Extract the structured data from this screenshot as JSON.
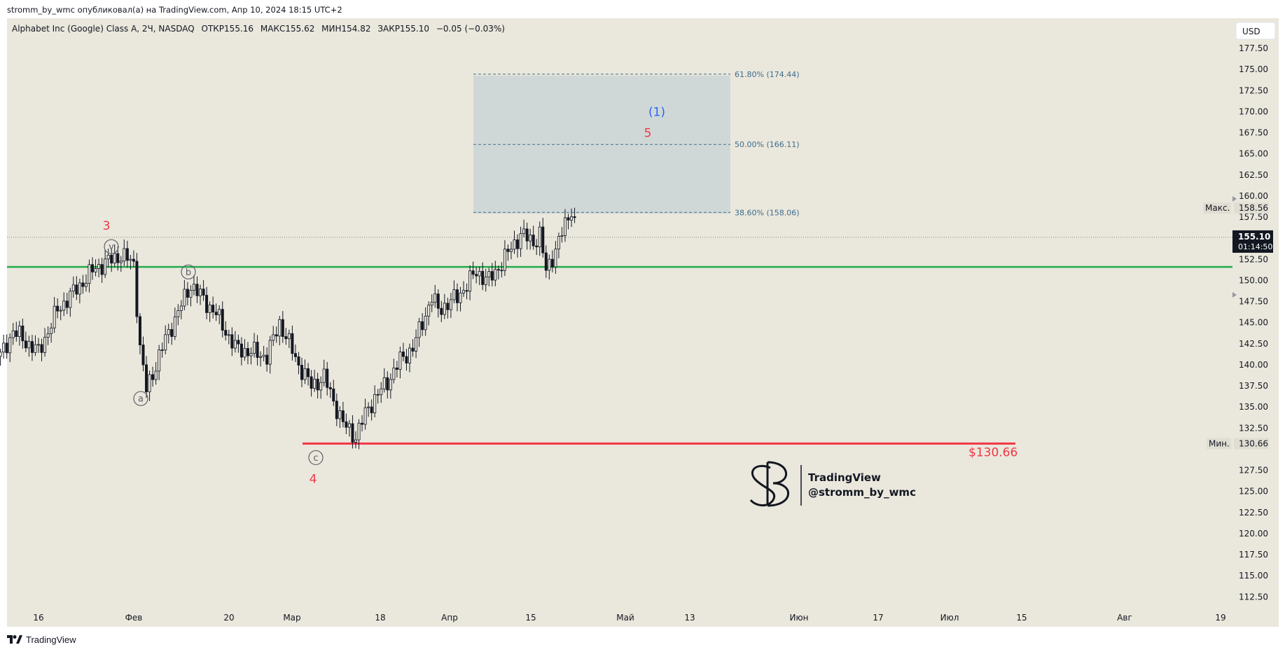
{
  "header": {
    "publish_line": "stromm_by_wmc опубликовал(а) на TradingView.com, Апр 10, 2024 18:15 UTC+2"
  },
  "legend": {
    "symbol": "Alphabet Inc (Google) Class A, 2Ч, NASDAQ",
    "open_label": "ОТКР",
    "open": "155.16",
    "high_label": "МАКС",
    "high": "155.62",
    "low_label": "МИН",
    "low": "154.82",
    "close_label": "ЗАКР",
    "close": "155.10",
    "change": "−0.05 (−0.03%)"
  },
  "currency_button": "USD",
  "price_axis": {
    "ticks": [
      "177.50",
      "175.00",
      "172.50",
      "170.00",
      "167.50",
      "165.00",
      "162.50",
      "160.00",
      "157.50",
      "152.50",
      "150.00",
      "147.50",
      "145.00",
      "142.50",
      "140.00",
      "137.50",
      "135.00",
      "132.50",
      "127.50",
      "125.00",
      "122.50",
      "120.00",
      "117.50",
      "115.00",
      "112.50"
    ],
    "max_label": "Макс.",
    "max_value": "158.56",
    "min_label": "Мин.",
    "min_value": "130.66",
    "last_price": "155.10",
    "countdown": "01:14:50"
  },
  "time_axis": {
    "ticks": [
      "16",
      "Фев",
      "20",
      "Мар",
      "18",
      "Апр",
      "15",
      "Май",
      "13",
      "Июн",
      "17",
      "Июл",
      "15",
      "Авг",
      "19"
    ]
  },
  "annotations": {
    "wave_3": "3",
    "wave_v": "v",
    "wave_a": "a",
    "wave_b": "b",
    "wave_c": "c",
    "wave_4": "4",
    "wave_5": "5",
    "wave_1": "(1)",
    "fib_618": "61.80% (174.44)",
    "fib_50": "50.00% (166.11)",
    "fib_386": "38.60% (158.06)",
    "support_price_label": "$130.66"
  },
  "watermark": {
    "brand": "TradingView",
    "handle": "@stromm_by_wmc"
  },
  "footer": {
    "logo_text": "TradingView"
  },
  "colors": {
    "background": "#eae7dc",
    "green_line": "#22ab4a",
    "red_line": "#f23645",
    "wave_red": "#f23645",
    "wave_blue": "#2962ff",
    "fib_zone": "#c9d5d6",
    "fib_text": "#3f6e8c"
  },
  "chart_data": {
    "type": "candlestick",
    "symbol": "GOOGL",
    "interval": "2H",
    "ylim": [
      111.5,
      179.5
    ],
    "swing_path": [
      {
        "x": "Jan 10",
        "y": 141.0
      },
      {
        "x": "Jan 12",
        "y": 144.0
      },
      {
        "x": "Jan 16",
        "y": 141.5
      },
      {
        "x": "Jan 19",
        "y": 146.5
      },
      {
        "x": "Jan 25",
        "y": 151.5
      },
      {
        "x": "Jan 29",
        "y": 153.0
      },
      {
        "x": "Jan 31",
        "y": 152.0
      },
      {
        "x": "Feb 1",
        "y": 142.0
      },
      {
        "x": "Feb 2",
        "y": 137.0
      },
      {
        "x": "Feb 5",
        "y": 143.0
      },
      {
        "x": "Feb 9",
        "y": 149.5
      },
      {
        "x": "Feb 13",
        "y": 146.0
      },
      {
        "x": "Feb 16",
        "y": 142.0
      },
      {
        "x": "Feb 21",
        "y": 141.0
      },
      {
        "x": "Feb 23",
        "y": 145.0
      },
      {
        "x": "Feb 26",
        "y": 140.0
      },
      {
        "x": "Feb 28",
        "y": 137.5
      },
      {
        "x": "Mar 1",
        "y": 138.5
      },
      {
        "x": "Mar 4",
        "y": 133.0
      },
      {
        "x": "Mar 6",
        "y": 131.5
      },
      {
        "x": "Mar 8",
        "y": 135.0
      },
      {
        "x": "Mar 11",
        "y": 138.0
      },
      {
        "x": "Mar 13",
        "y": 140.5
      },
      {
        "x": "Mar 15",
        "y": 142.0
      },
      {
        "x": "Mar 18",
        "y": 148.0
      },
      {
        "x": "Mar 19",
        "y": 146.5
      },
      {
        "x": "Mar 22",
        "y": 148.0
      },
      {
        "x": "Mar 25",
        "y": 151.0
      },
      {
        "x": "Mar 27",
        "y": 150.0
      },
      {
        "x": "Mar 28",
        "y": 151.0
      },
      {
        "x": "Apr 1",
        "y": 155.5
      },
      {
        "x": "Apr 3",
        "y": 154.5
      },
      {
        "x": "Apr 4",
        "y": 155.5
      },
      {
        "x": "Apr 5",
        "y": 151.0
      },
      {
        "x": "Apr 8",
        "y": 156.5
      },
      {
        "x": "Apr 9",
        "y": 158.56
      },
      {
        "x": "Apr 10",
        "y": 155.1
      }
    ],
    "last_close": 155.1,
    "period_high": 158.56,
    "period_low": 130.66,
    "horizontal_lines": [
      {
        "price": 151.6,
        "color": "green"
      },
      {
        "price": 130.66,
        "color": "red",
        "label": "$130.66"
      }
    ],
    "fib_levels": [
      {
        "ratio": "38.60%",
        "price": 158.06
      },
      {
        "ratio": "50.00%",
        "price": 166.11
      },
      {
        "ratio": "61.80%",
        "price": 174.44
      }
    ],
    "wave_labels": [
      {
        "label": "3",
        "price": 156.5
      },
      {
        "label": "v",
        "price": 154.0
      },
      {
        "label": "a",
        "price": 136.0
      },
      {
        "label": "b",
        "price": 151.0
      },
      {
        "label": "c",
        "price": 129.0
      },
      {
        "label": "4",
        "price": 126.5
      },
      {
        "label": "5",
        "price": 167.5
      },
      {
        "label": "(1)",
        "price": 170.0
      }
    ]
  }
}
